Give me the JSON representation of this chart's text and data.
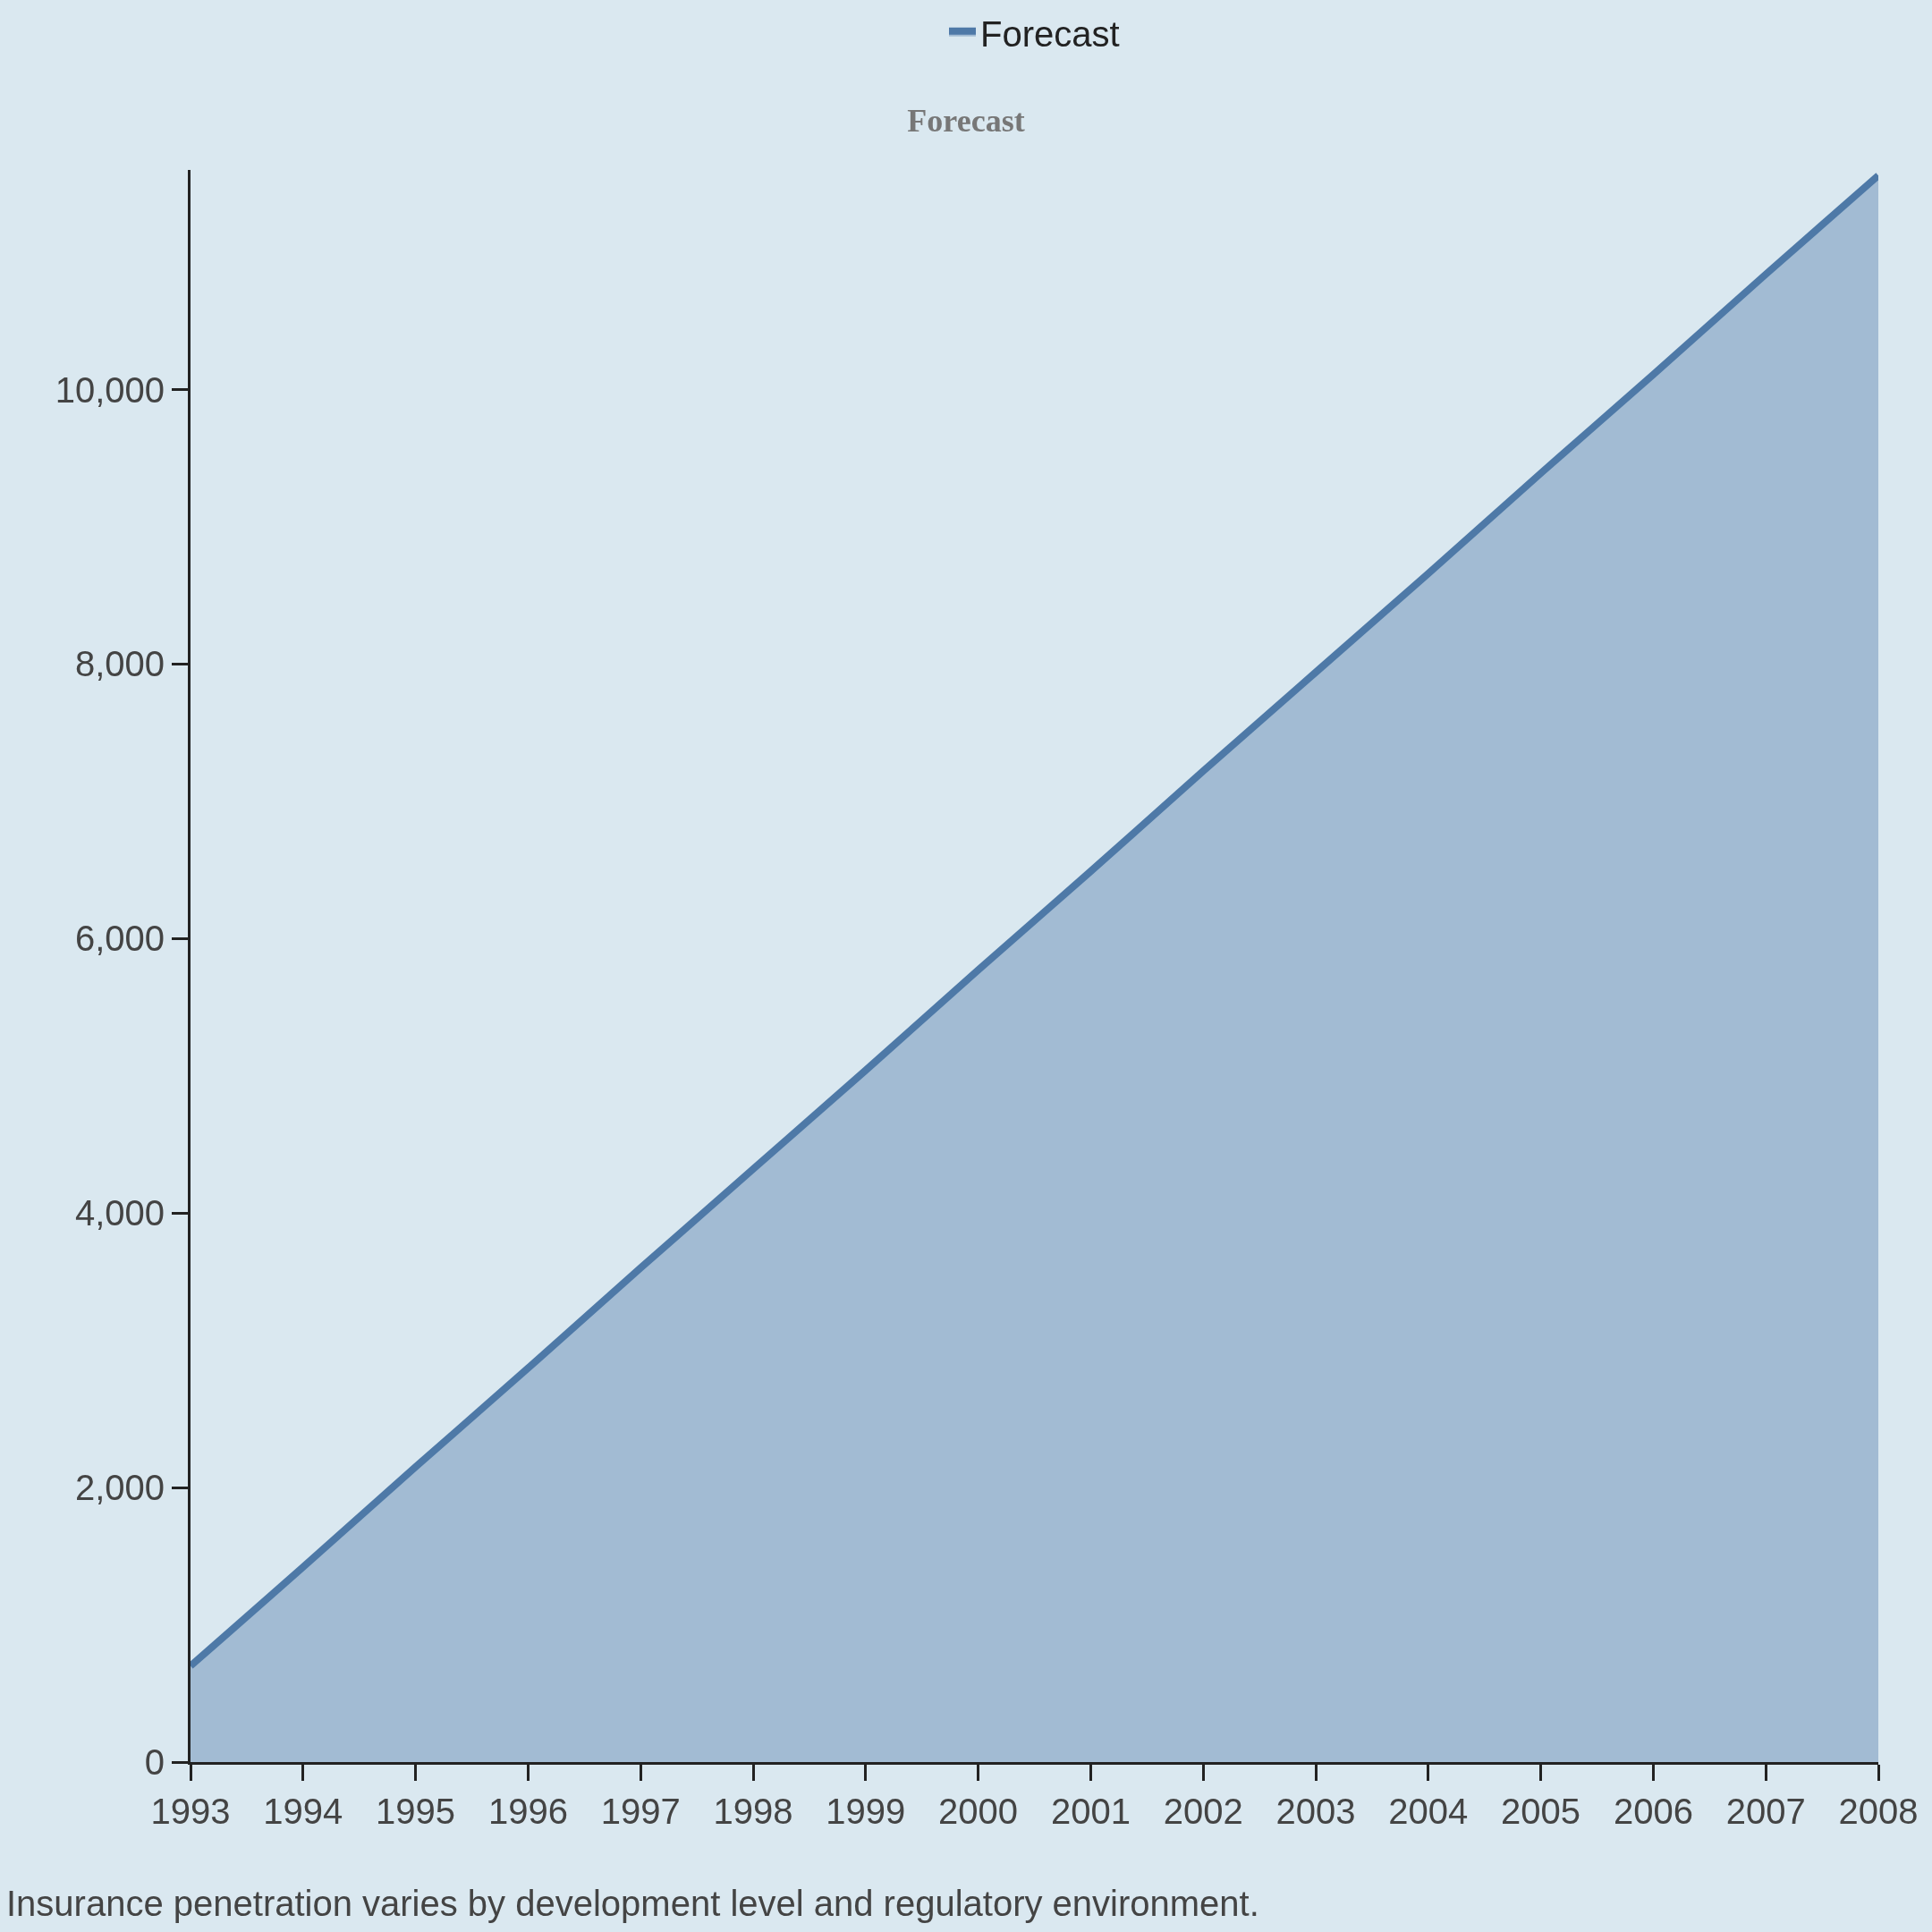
{
  "chart_data": {
    "type": "area",
    "title": "Forecast",
    "x": [
      1993,
      1994,
      1995,
      1996,
      1997,
      1998,
      1999,
      2000,
      2001,
      2002,
      2003,
      2004,
      2005,
      2006,
      2007,
      2008
    ],
    "series": [
      {
        "name": "Forecast",
        "color": "#4e79a7",
        "values": [
          700,
          1420,
          2150,
          2870,
          3600,
          4320,
          5040,
          5770,
          6490,
          7220,
          7940,
          8660,
          9390,
          10110,
          10840,
          11560
        ]
      }
    ],
    "xlim": [
      1993,
      2008
    ],
    "xticks": [
      1993,
      1994,
      1995,
      1996,
      1997,
      1998,
      1999,
      2000,
      2001,
      2002,
      2003,
      2004,
      2005,
      2006,
      2007,
      2008
    ],
    "ylim": [
      0,
      11600
    ],
    "yticks": [
      0,
      {
        "value": 2000,
        "label": "2,000"
      },
      {
        "value": 4000,
        "label": "4,000"
      },
      {
        "value": 6000,
        "label": "6,000"
      },
      {
        "value": 8000,
        "label": "8,000"
      },
      {
        "value": 10000,
        "label": "10,000"
      }
    ],
    "grid": false,
    "legend": "top",
    "annotations": [
      "Insurance penetration varies by development level and regulatory environment."
    ]
  }
}
